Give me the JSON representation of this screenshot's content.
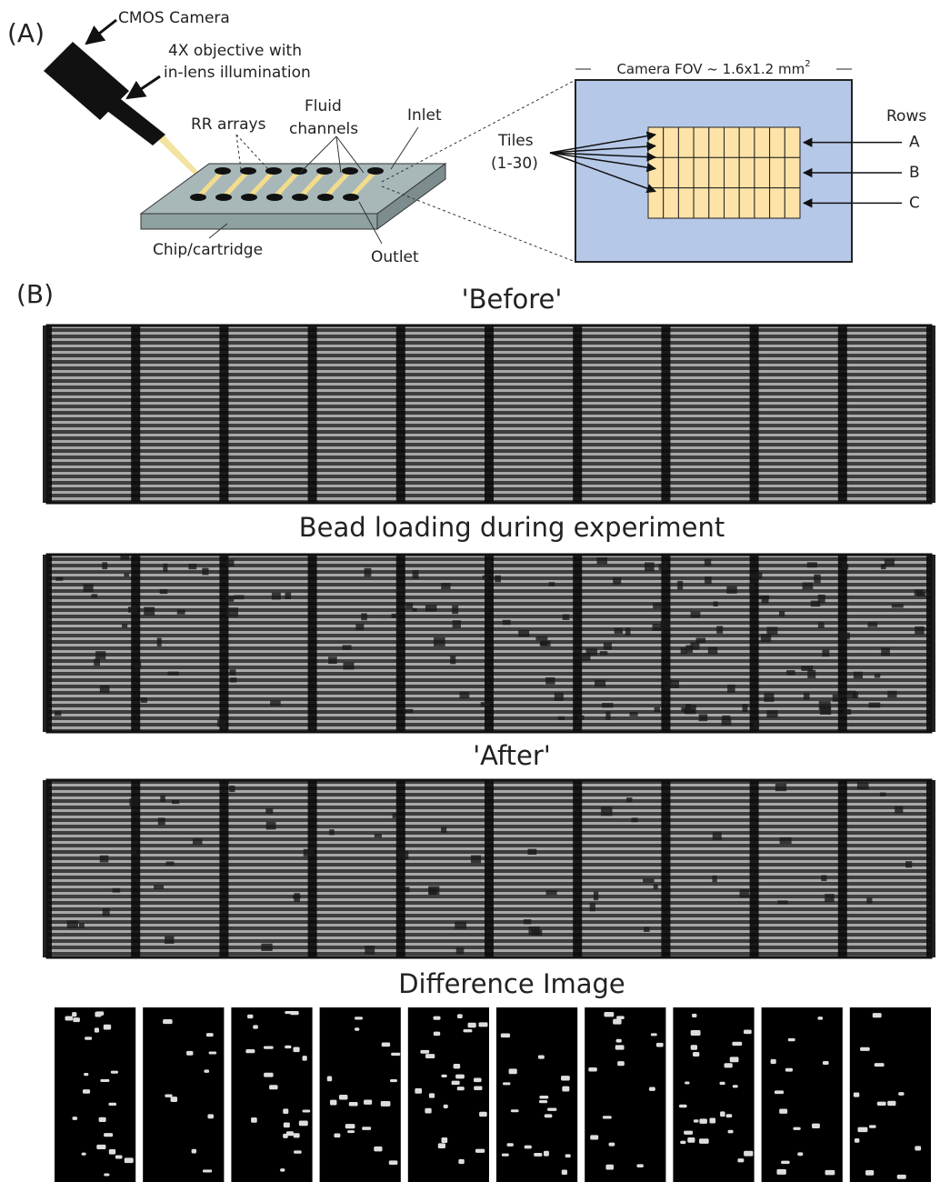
{
  "panel_a": {
    "label": "(A)",
    "camera": "CMOS Camera",
    "objective_line1": "4X objective with",
    "objective_line2": "in-lens illumination",
    "rr_arrays": "RR arrays",
    "fluid_line1": "Fluid",
    "fluid_line2": "channels",
    "inlet": "Inlet",
    "chip": "Chip/cartridge",
    "outlet": "Outlet",
    "fov": {
      "text": "Camera FOV ~ 1.6x1.2 mm",
      "superscript": "2"
    },
    "tiles_line1": "Tiles",
    "tiles_line2": "(1-30)",
    "rows_title": "Rows",
    "rows": [
      "A",
      "B",
      "C"
    ]
  },
  "panel_b": {
    "label": "(B)",
    "images": [
      {
        "title": "'Before'"
      },
      {
        "title": "Bead loading during experiment"
      },
      {
        "title": "'After'"
      },
      {
        "title": "Difference Image"
      }
    ]
  }
}
